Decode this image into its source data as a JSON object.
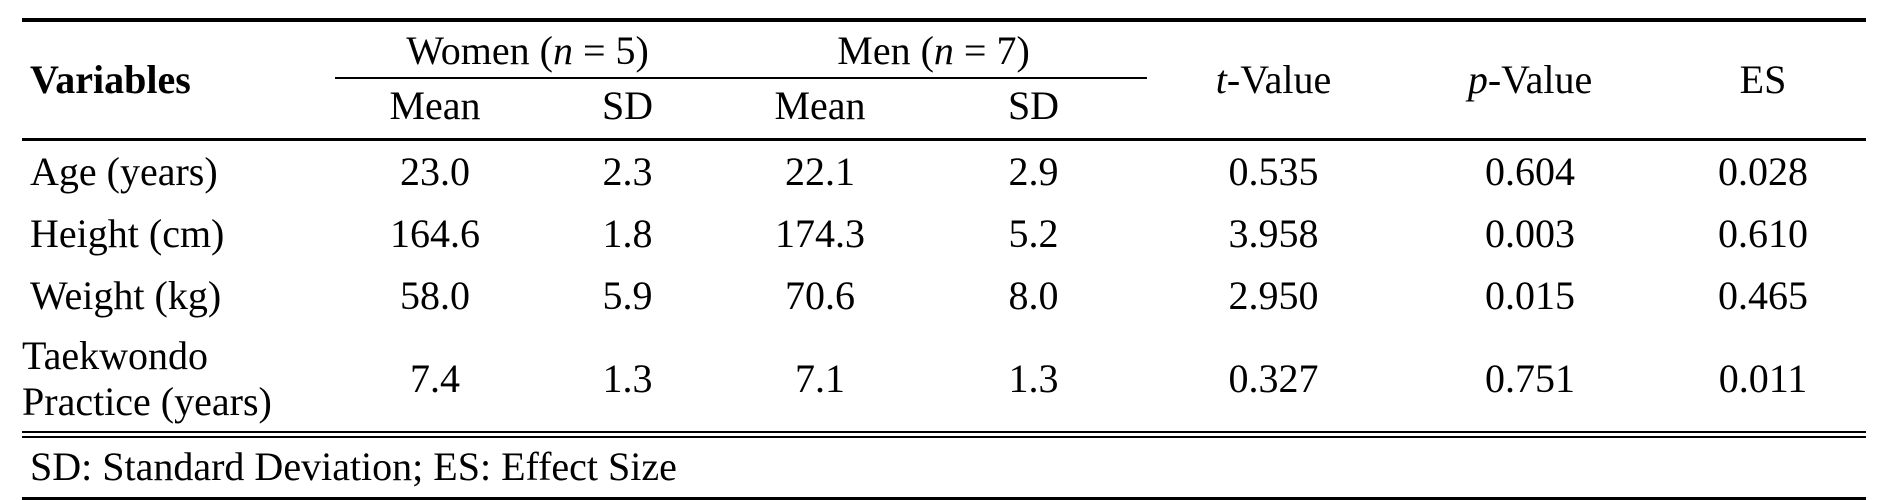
{
  "colors": {
    "text": "#000000",
    "background": "#ffffff",
    "rule": "#000000"
  },
  "header": {
    "variables": "Variables",
    "women": {
      "pre": "Women (",
      "symbol": "n",
      "post": " = 5)"
    },
    "men": {
      "pre": "Men (",
      "symbol": "n",
      "post": " = 7)"
    },
    "sub": {
      "women_mean": "Mean",
      "women_sd": "SD",
      "men_mean": "Mean",
      "men_sd": "SD"
    },
    "t_value": {
      "symbol": "t",
      "post": "-Value"
    },
    "p_value": {
      "symbol": "p",
      "post": "-Value"
    },
    "es": "ES"
  },
  "rows": [
    {
      "variable": "Age (years)",
      "w_mean": "23.0",
      "w_sd": "2.3",
      "m_mean": "22.1",
      "m_sd": "2.9",
      "t": "0.535",
      "p": "0.604",
      "es": "0.028"
    },
    {
      "variable": "Height (cm)",
      "w_mean": "164.6",
      "w_sd": "1.8",
      "m_mean": "174.3",
      "m_sd": "5.2",
      "t": "3.958",
      "p": "0.003",
      "es": "0.610"
    },
    {
      "variable": "Weight (kg)",
      "w_mean": "58.0",
      "w_sd": "5.9",
      "m_mean": "70.6",
      "m_sd": "8.0",
      "t": "2.950",
      "p": "0.015",
      "es": "0.465"
    },
    {
      "variable": "Taekwondo Practice (years)",
      "w_mean": "7.4",
      "w_sd": "1.3",
      "m_mean": "7.1",
      "m_sd": "1.3",
      "t": "0.327",
      "p": "0.751",
      "es": "0.011"
    }
  ],
  "footnote": "SD: Standard Deviation; ES: Effect Size",
  "chart_data": {
    "type": "table",
    "title": "",
    "columns": [
      "Variables",
      "Women Mean",
      "Women SD",
      "Men Mean",
      "Men SD",
      "t-Value",
      "p-Value",
      "ES"
    ],
    "group_headers": [
      "Women (n = 5)",
      "Men (n = 7)"
    ],
    "rows": [
      [
        "Age (years)",
        23.0,
        2.3,
        22.1,
        2.9,
        0.535,
        0.604,
        0.028
      ],
      [
        "Height (cm)",
        164.6,
        1.8,
        174.3,
        5.2,
        3.958,
        0.003,
        0.61
      ],
      [
        "Weight (kg)",
        58.0,
        5.9,
        70.6,
        8.0,
        2.95,
        0.015,
        0.465
      ],
      [
        "Taekwondo Practice (years)",
        7.4,
        1.3,
        7.1,
        1.3,
        0.327,
        0.751,
        0.011
      ]
    ],
    "footnote": "SD: Standard Deviation; ES: Effect Size"
  }
}
